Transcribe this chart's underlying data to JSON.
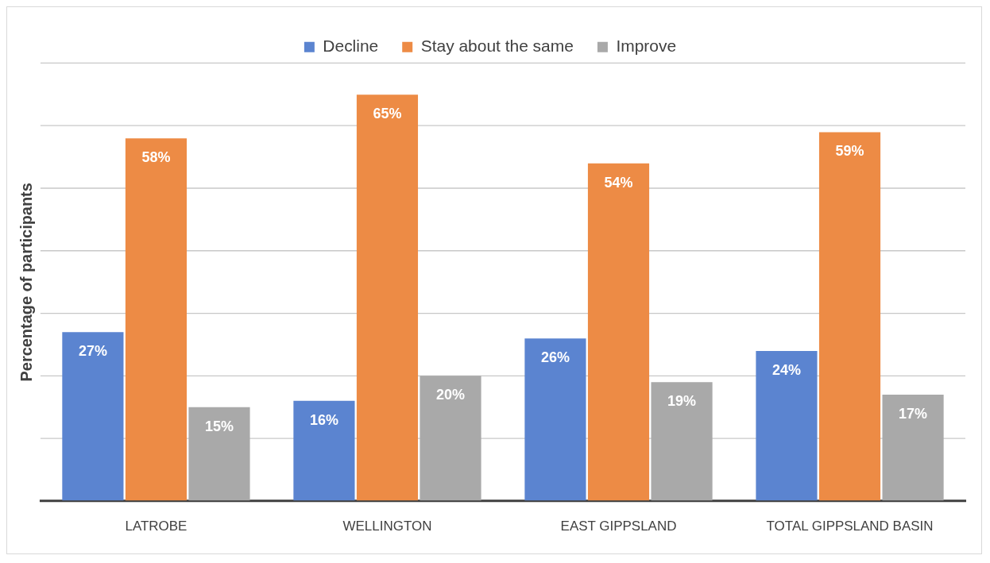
{
  "chart_data": {
    "type": "bar",
    "ylabel": "Percentage of participants",
    "categories": [
      "LATROBE",
      "WELLINGTON",
      "EAST GIPPSLAND",
      "TOTAL GIPPSLAND BASIN"
    ],
    "series": [
      {
        "name": "Decline",
        "color": "#5b84d0",
        "values": [
          27,
          16,
          26,
          24
        ],
        "value_labels": [
          "27%",
          "16%",
          "26%",
          "24%"
        ]
      },
      {
        "name": "Stay about the same",
        "color": "#ed8b45",
        "values": [
          58,
          65,
          54,
          59
        ],
        "value_labels": [
          "58%",
          "65%",
          "54%",
          "59%"
        ]
      },
      {
        "name": "Improve",
        "color": "#a9a9a9",
        "values": [
          15,
          20,
          19,
          17
        ],
        "value_labels": [
          "15%",
          "20%",
          "19%",
          "17%"
        ]
      }
    ],
    "ylim": [
      0,
      70
    ],
    "yticks": [
      {
        "value": 0,
        "label": null
      },
      {
        "value": 10,
        "label": null
      },
      {
        "value": 20,
        "label": null
      },
      {
        "value": 30,
        "label": null
      },
      {
        "value": 40,
        "label": null
      },
      {
        "value": 50,
        "label": null
      },
      {
        "value": 60,
        "label": null
      },
      {
        "value": 70,
        "label": null
      }
    ],
    "grid": "y",
    "legend": "top",
    "tick_labels": "x"
  }
}
